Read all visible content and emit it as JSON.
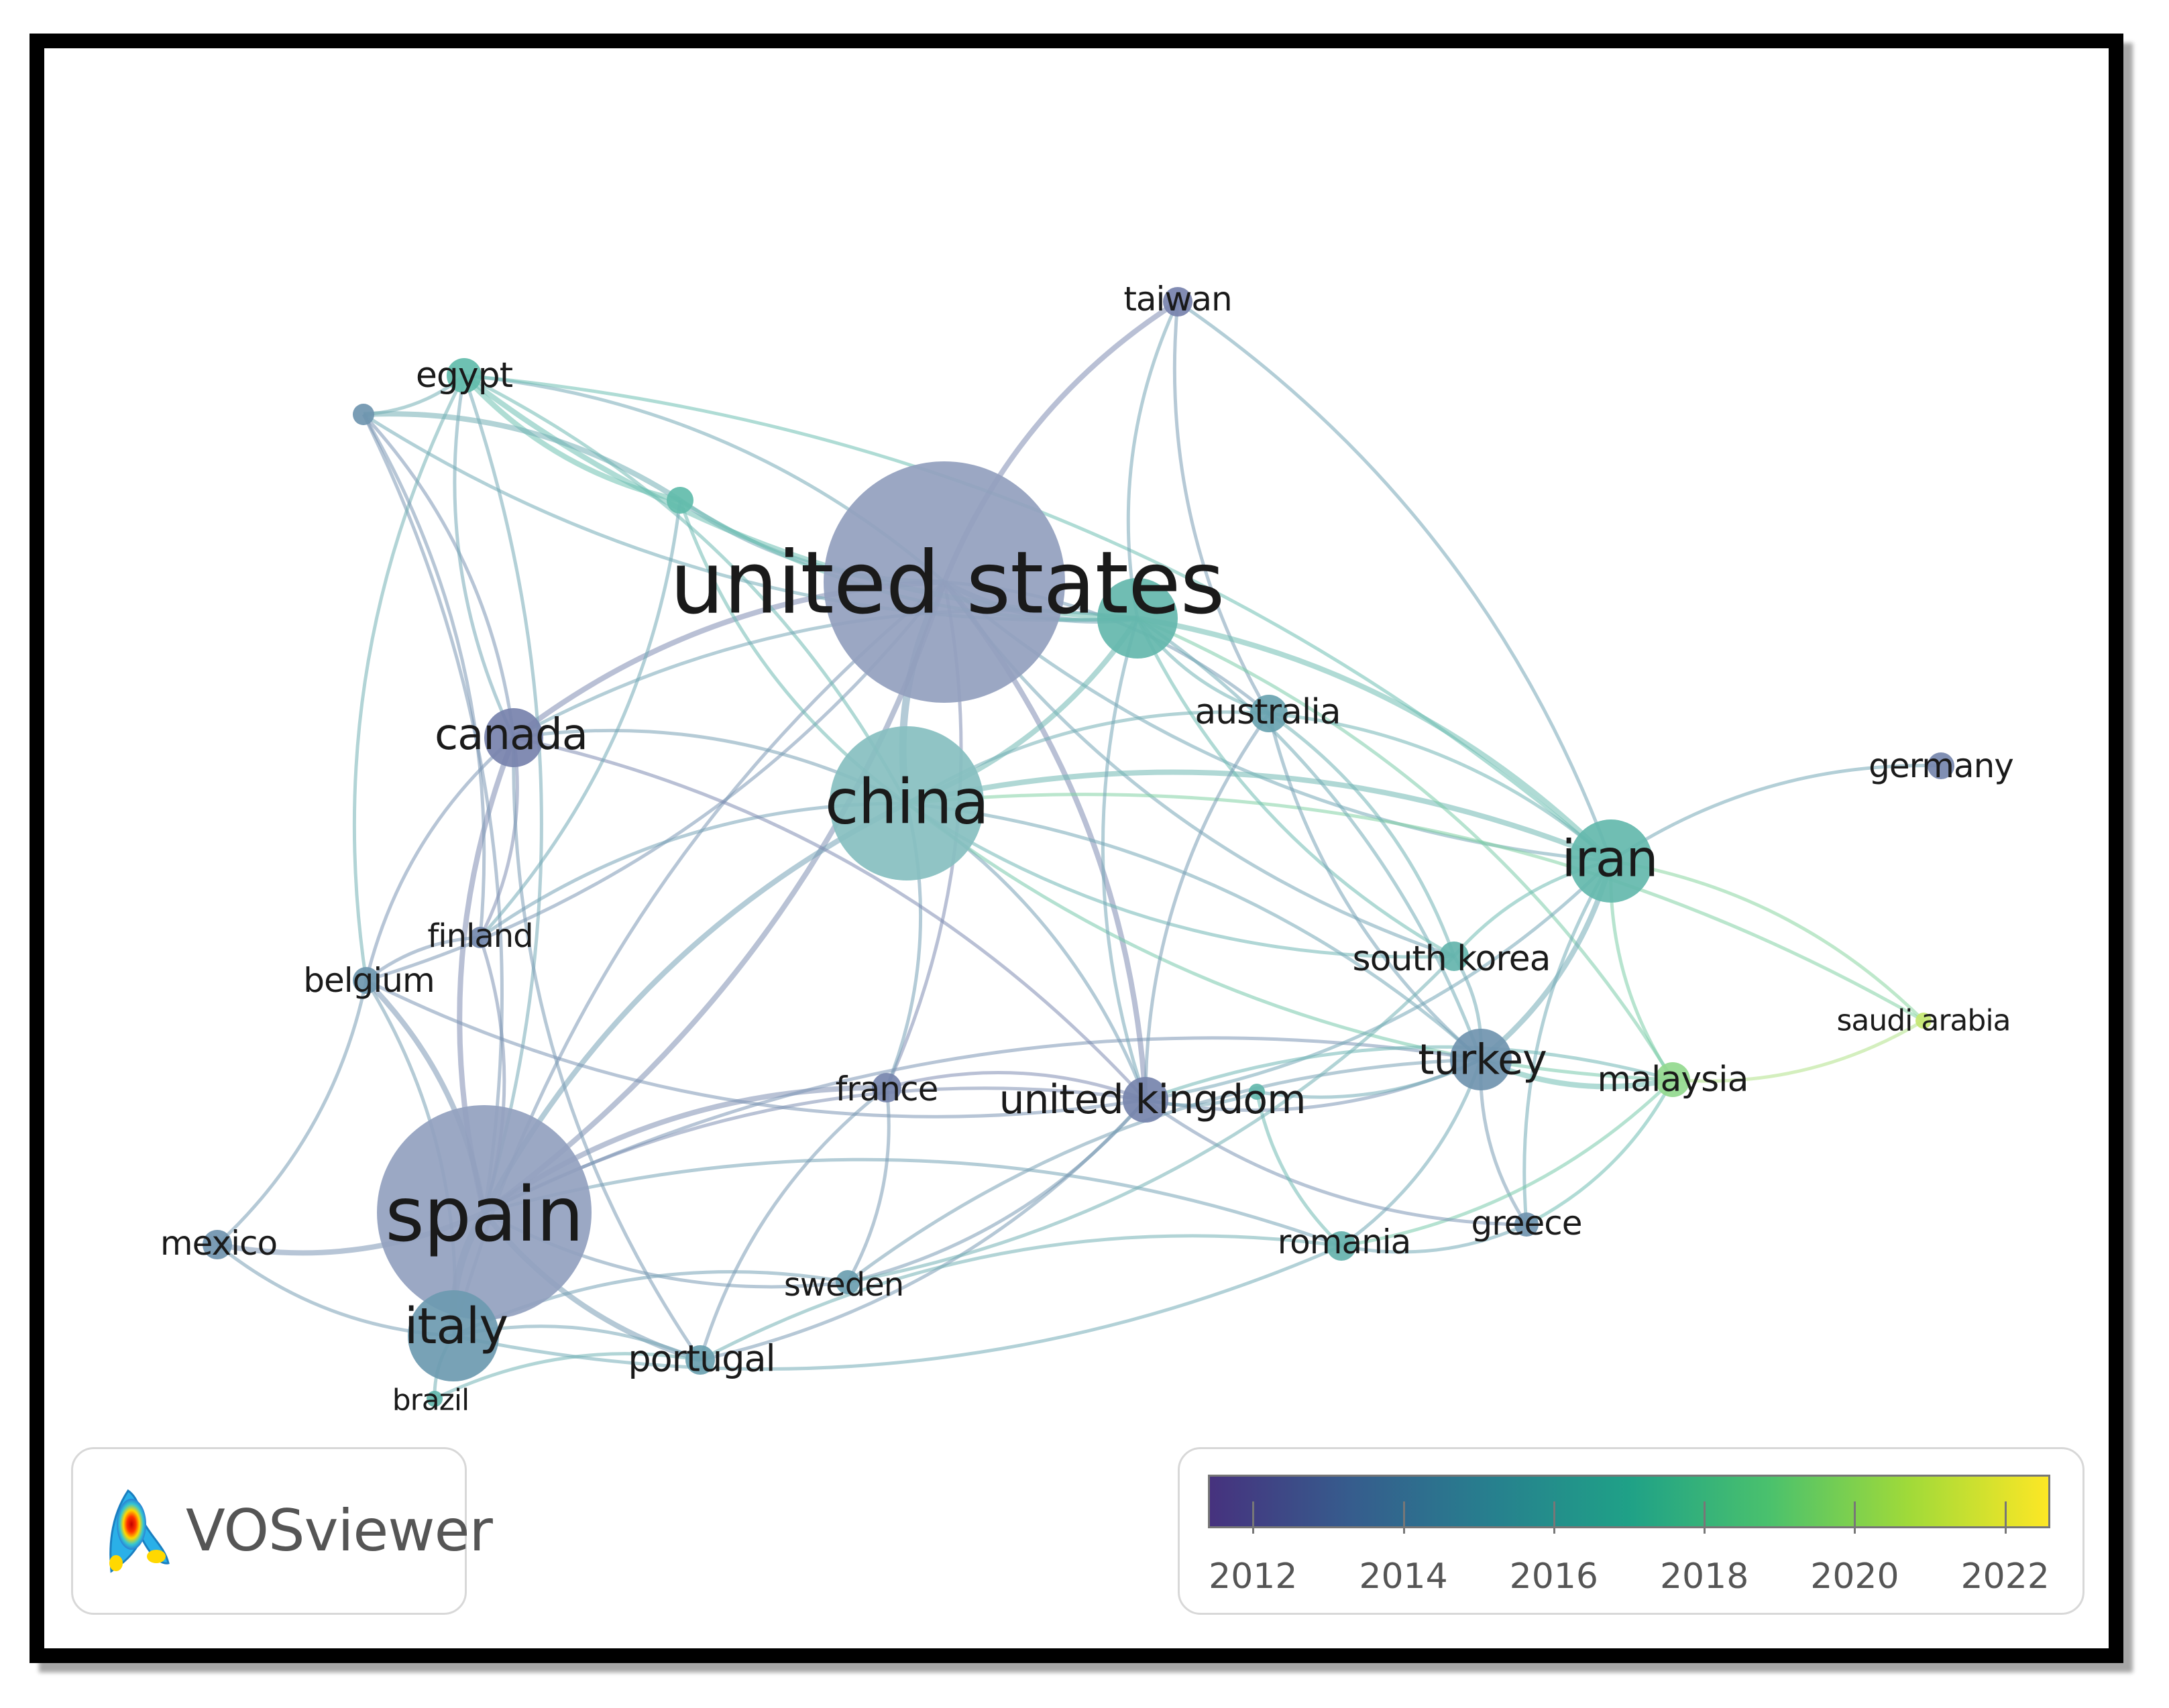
{
  "network": {
    "nodes": [
      {
        "id": "united states",
        "label": "united states",
        "year": 2012.8,
        "size": 1.0
      },
      {
        "id": "china",
        "label": "china",
        "year": 2015.8,
        "size": 0.62
      },
      {
        "id": "spain",
        "label": "spain",
        "year": 2012.9,
        "size": 0.9
      },
      {
        "id": "italy",
        "label": "italy",
        "year": 2014.3,
        "size": 0.42
      },
      {
        "id": "canada",
        "label": "canada",
        "year": 2012.6,
        "size": 0.33
      },
      {
        "id": "iran",
        "label": "iran",
        "year": 2016.6,
        "size": 0.42
      },
      {
        "id": "turkey",
        "label": "turkey",
        "year": 2013.8,
        "size": 0.3
      },
      {
        "id": "united kingdom",
        "label": "united kingdom",
        "year": 2012.7,
        "size": 0.22
      },
      {
        "id": "australia",
        "label": "australia",
        "year": 2015.0,
        "size": 0.18
      },
      {
        "id": "taiwan",
        "label": "taiwan",
        "year": 2012.6,
        "size": 0.16
      },
      {
        "id": "egypt",
        "label": "egypt",
        "year": 2016.9,
        "size": 0.18
      },
      {
        "id": "germany",
        "label": "germany",
        "year": 2012.8,
        "size": 0.15
      },
      {
        "id": "south korea",
        "label": "south korea",
        "year": 2016.3,
        "size": 0.15
      },
      {
        "id": "malaysia",
        "label": "malaysia",
        "year": 2019.4,
        "size": 0.17
      },
      {
        "id": "saudi arabia",
        "label": "saudi arabia",
        "year": 2021.0,
        "size": 0.08
      },
      {
        "id": "greece",
        "label": "greece",
        "year": 2013.8,
        "size": 0.12
      },
      {
        "id": "romania",
        "label": "romania",
        "year": 2016.1,
        "size": 0.14
      },
      {
        "id": "france",
        "label": "france",
        "year": 2012.7,
        "size": 0.14
      },
      {
        "id": "sweden",
        "label": "sweden",
        "year": 2014.6,
        "size": 0.12
      },
      {
        "id": "portugal",
        "label": "portugal",
        "year": 2014.8,
        "size": 0.15
      },
      {
        "id": "brazil",
        "label": "brazil",
        "year": 2016.5,
        "size": 0.08
      },
      {
        "id": "mexico",
        "label": "mexico",
        "year": 2013.8,
        "size": 0.14
      },
      {
        "id": "belgium",
        "label": "belgium",
        "year": 2014.0,
        "size": 0.13
      },
      {
        "id": "finland",
        "label": "finland",
        "year": 2013.0,
        "size": 0.11
      },
      {
        "id": "n1",
        "label": "",
        "year": 2016.5,
        "size": 0.3
      },
      {
        "id": "n2",
        "label": "",
        "year": 2016.9,
        "size": 0.14
      },
      {
        "id": "n3",
        "label": "",
        "year": 2013.9,
        "size": 0.1
      },
      {
        "id": "n4",
        "label": "",
        "year": 2016.6,
        "size": 0.08
      }
    ],
    "links": [
      {
        "source": "united states",
        "target": "china",
        "strength": 3
      },
      {
        "source": "united states",
        "target": "spain",
        "strength": 2
      },
      {
        "source": "united states",
        "target": "canada",
        "strength": 2
      },
      {
        "source": "united states",
        "target": "taiwan",
        "strength": 2
      },
      {
        "source": "united states",
        "target": "n1",
        "strength": 2
      },
      {
        "source": "united states",
        "target": "n2",
        "strength": 2
      },
      {
        "source": "united states",
        "target": "egypt",
        "strength": 1
      },
      {
        "source": "united states",
        "target": "australia",
        "strength": 1
      },
      {
        "source": "united states",
        "target": "iran",
        "strength": 1
      },
      {
        "source": "united states",
        "target": "united kingdom",
        "strength": 2
      },
      {
        "source": "united states",
        "target": "italy",
        "strength": 1
      },
      {
        "source": "united states",
        "target": "belgium",
        "strength": 1
      },
      {
        "source": "united states",
        "target": "south korea",
        "strength": 1
      },
      {
        "source": "united states",
        "target": "france",
        "strength": 1
      },
      {
        "source": "china",
        "target": "spain",
        "strength": 2
      },
      {
        "source": "china",
        "target": "iran",
        "strength": 2
      },
      {
        "source": "china",
        "target": "n1",
        "strength": 2
      },
      {
        "source": "china",
        "target": "australia",
        "strength": 1
      },
      {
        "source": "china",
        "target": "canada",
        "strength": 1
      },
      {
        "source": "china",
        "target": "united kingdom",
        "strength": 1
      },
      {
        "source": "china",
        "target": "south korea",
        "strength": 1
      },
      {
        "source": "china",
        "target": "turkey",
        "strength": 1
      },
      {
        "source": "china",
        "target": "malaysia",
        "strength": 1
      },
      {
        "source": "china",
        "target": "france",
        "strength": 1
      },
      {
        "source": "china",
        "target": "egypt",
        "strength": 1
      },
      {
        "source": "china",
        "target": "n2",
        "strength": 1
      },
      {
        "source": "china",
        "target": "finland",
        "strength": 1
      },
      {
        "source": "china",
        "target": "saudi arabia",
        "strength": 1
      },
      {
        "source": "spain",
        "target": "italy",
        "strength": 3
      },
      {
        "source": "spain",
        "target": "canada",
        "strength": 2
      },
      {
        "source": "spain",
        "target": "belgium",
        "strength": 2
      },
      {
        "source": "spain",
        "target": "mexico",
        "strength": 2
      },
      {
        "source": "spain",
        "target": "portugal",
        "strength": 2
      },
      {
        "source": "spain",
        "target": "france",
        "strength": 2
      },
      {
        "source": "spain",
        "target": "sweden",
        "strength": 1
      },
      {
        "source": "spain",
        "target": "united kingdom",
        "strength": 1
      },
      {
        "source": "spain",
        "target": "finland",
        "strength": 1
      },
      {
        "source": "spain",
        "target": "turkey",
        "strength": 1
      },
      {
        "source": "spain",
        "target": "n3",
        "strength": 1
      },
      {
        "source": "spain",
        "target": "romania",
        "strength": 1
      },
      {
        "source": "spain",
        "target": "egypt",
        "strength": 1
      },
      {
        "source": "italy",
        "target": "portugal",
        "strength": 1
      },
      {
        "source": "italy",
        "target": "brazil",
        "strength": 1
      },
      {
        "source": "italy",
        "target": "mexico",
        "strength": 1
      },
      {
        "source": "italy",
        "target": "belgium",
        "strength": 1
      },
      {
        "source": "italy",
        "target": "sweden",
        "strength": 1
      },
      {
        "source": "italy",
        "target": "romania",
        "strength": 1
      },
      {
        "source": "canada",
        "target": "finland",
        "strength": 1
      },
      {
        "source": "canada",
        "target": "n3",
        "strength": 1
      },
      {
        "source": "canada",
        "target": "united kingdom",
        "strength": 1
      },
      {
        "source": "canada",
        "target": "belgium",
        "strength": 1
      },
      {
        "source": "canada",
        "target": "egypt",
        "strength": 1
      },
      {
        "source": "canada",
        "target": "portugal",
        "strength": 1
      },
      {
        "source": "canada",
        "target": "n1",
        "strength": 1
      },
      {
        "source": "egypt",
        "target": "n2",
        "strength": 2
      },
      {
        "source": "egypt",
        "target": "n3",
        "strength": 1
      },
      {
        "source": "egypt",
        "target": "n1",
        "strength": 2
      },
      {
        "source": "egypt",
        "target": "iran",
        "strength": 1
      },
      {
        "source": "egypt",
        "target": "belgium",
        "strength": 1
      },
      {
        "source": "n3",
        "target": "n2",
        "strength": 2
      },
      {
        "source": "n3",
        "target": "n1",
        "strength": 1
      },
      {
        "source": "n3",
        "target": "finland",
        "strength": 1
      },
      {
        "source": "n2",
        "target": "n1",
        "strength": 1
      },
      {
        "source": "n2",
        "target": "finland",
        "strength": 1
      },
      {
        "source": "taiwan",
        "target": "n1",
        "strength": 1
      },
      {
        "source": "taiwan",
        "target": "iran",
        "strength": 1
      },
      {
        "source": "taiwan",
        "target": "australia",
        "strength": 1
      },
      {
        "source": "n1",
        "target": "iran",
        "strength": 2
      },
      {
        "source": "n1",
        "target": "australia",
        "strength": 1
      },
      {
        "source": "n1",
        "target": "turkey",
        "strength": 1
      },
      {
        "source": "n1",
        "target": "south korea",
        "strength": 1
      },
      {
        "source": "n1",
        "target": "malaysia",
        "strength": 1
      },
      {
        "source": "n1",
        "target": "united kingdom",
        "strength": 1
      },
      {
        "source": "australia",
        "target": "iran",
        "strength": 1
      },
      {
        "source": "australia",
        "target": "united kingdom",
        "strength": 1
      },
      {
        "source": "australia",
        "target": "south korea",
        "strength": 1
      },
      {
        "source": "australia",
        "target": "turkey",
        "strength": 1
      },
      {
        "source": "iran",
        "target": "turkey",
        "strength": 2
      },
      {
        "source": "iran",
        "target": "malaysia",
        "strength": 1
      },
      {
        "source": "iran",
        "target": "germany",
        "strength": 1
      },
      {
        "source": "iran",
        "target": "south korea",
        "strength": 1
      },
      {
        "source": "iran",
        "target": "saudi arabia",
        "strength": 1
      },
      {
        "source": "iran",
        "target": "greece",
        "strength": 1
      },
      {
        "source": "iran",
        "target": "united kingdom",
        "strength": 1
      },
      {
        "source": "turkey",
        "target": "malaysia",
        "strength": 2
      },
      {
        "source": "turkey",
        "target": "united kingdom",
        "strength": 1
      },
      {
        "source": "turkey",
        "target": "greece",
        "strength": 1
      },
      {
        "source": "turkey",
        "target": "romania",
        "strength": 1
      },
      {
        "source": "turkey",
        "target": "south korea",
        "strength": 1
      },
      {
        "source": "turkey",
        "target": "n4",
        "strength": 1
      },
      {
        "source": "malaysia",
        "target": "saudi arabia",
        "strength": 1
      },
      {
        "source": "malaysia",
        "target": "greece",
        "strength": 1
      },
      {
        "source": "malaysia",
        "target": "united kingdom",
        "strength": 1
      },
      {
        "source": "malaysia",
        "target": "romania",
        "strength": 1
      },
      {
        "source": "united kingdom",
        "target": "france",
        "strength": 1
      },
      {
        "source": "united kingdom",
        "target": "sweden",
        "strength": 1
      },
      {
        "source": "united kingdom",
        "target": "greece",
        "strength": 1
      },
      {
        "source": "united kingdom",
        "target": "portugal",
        "strength": 1
      },
      {
        "source": "united kingdom",
        "target": "n4",
        "strength": 1
      },
      {
        "source": "united kingdom",
        "target": "belgium",
        "strength": 1
      },
      {
        "source": "n4",
        "target": "romania",
        "strength": 1
      },
      {
        "source": "france",
        "target": "sweden",
        "strength": 1
      },
      {
        "source": "france",
        "target": "portugal",
        "strength": 1
      },
      {
        "source": "sweden",
        "target": "turkey",
        "strength": 1
      },
      {
        "source": "sweden",
        "target": "south korea",
        "strength": 1
      },
      {
        "source": "portugal",
        "target": "romania",
        "strength": 1
      },
      {
        "source": "romania",
        "target": "greece",
        "strength": 1
      },
      {
        "source": "belgium",
        "target": "finland",
        "strength": 1
      },
      {
        "source": "mexico",
        "target": "belgium",
        "strength": 1
      },
      {
        "source": "brazil",
        "target": "portugal",
        "strength": 1
      }
    ]
  },
  "legend": {
    "ticks": [
      2012,
      2014,
      2016,
      2018,
      2020,
      2022
    ],
    "range": [
      2011.4,
      2022.6
    ],
    "colors": [
      "#46327e",
      "#365c8d",
      "#277f8e",
      "#1fa187",
      "#4ac16d",
      "#a0da39",
      "#fde725"
    ]
  },
  "logo": {
    "text": "VOSviewer"
  }
}
